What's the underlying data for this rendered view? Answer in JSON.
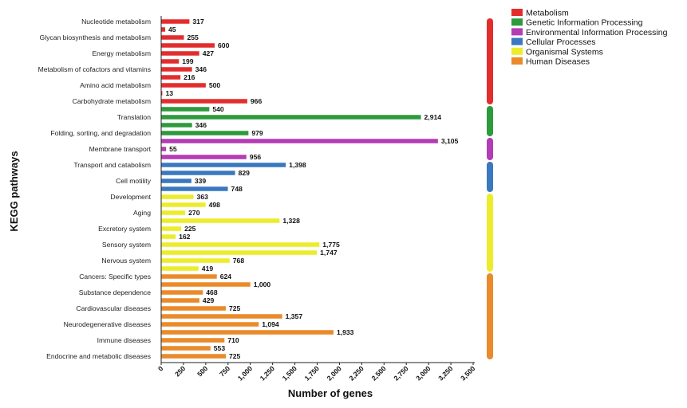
{
  "chart_data": {
    "type": "bar",
    "orientation": "horizontal",
    "xlabel": "Number of genes",
    "ylabel": "KEGG pathways",
    "xlim": [
      0,
      3500
    ],
    "xticks": [
      "0",
      "250",
      "500",
      "750",
      "1,000",
      "1,250",
      "1,500",
      "1,750",
      "2,000",
      "2,250",
      "2,500",
      "2,750",
      "3,000",
      "3,250",
      "3,500"
    ],
    "grid": false,
    "legend_position": "top-right",
    "groups": [
      {
        "name": "Metabolism",
        "color": "#e32d2d"
      },
      {
        "name": "Genetic Information Processing",
        "color": "#2d9a3c"
      },
      {
        "name": "Environmental Information Processing",
        "color": "#b43cb4"
      },
      {
        "name": "Cellular Processes",
        "color": "#3a78bf"
      },
      {
        "name": "Organismal Systems",
        "color": "#ecec2c"
      },
      {
        "name": "Human Diseases",
        "color": "#ea8a2a"
      }
    ],
    "bars": [
      {
        "label": "Nucleotide metabolism",
        "value": 317,
        "value_label": "317",
        "group": 0
      },
      {
        "label": "",
        "value": 45,
        "value_label": "45",
        "group": 0
      },
      {
        "label": "Glycan biosynthesis and metabolism",
        "value": 255,
        "value_label": "255",
        "group": 0
      },
      {
        "label": "",
        "value": 600,
        "value_label": "600",
        "group": 0
      },
      {
        "label": "Energy metabolism",
        "value": 427,
        "value_label": "427",
        "group": 0
      },
      {
        "label": "",
        "value": 199,
        "value_label": "199",
        "group": 0
      },
      {
        "label": "Metabolism of cofactors and vitamins",
        "value": 346,
        "value_label": "346",
        "group": 0
      },
      {
        "label": "",
        "value": 216,
        "value_label": "216",
        "group": 0
      },
      {
        "label": "Amino acid metabolism",
        "value": 500,
        "value_label": "500",
        "group": 0
      },
      {
        "label": "",
        "value": 13,
        "value_label": "13",
        "group": 0
      },
      {
        "label": "Carbohydrate metabolism",
        "value": 966,
        "value_label": "966",
        "group": 0
      },
      {
        "label": "",
        "value": 540,
        "value_label": "540",
        "group": 1
      },
      {
        "label": "Translation",
        "value": 2914,
        "value_label": "2,914",
        "group": 1
      },
      {
        "label": "",
        "value": 346,
        "value_label": "346",
        "group": 1
      },
      {
        "label": "Folding, sorting, and degradation",
        "value": 979,
        "value_label": "979",
        "group": 1
      },
      {
        "label": "",
        "value": 3105,
        "value_label": "3,105",
        "group": 2
      },
      {
        "label": "Membrane transport",
        "value": 55,
        "value_label": "55",
        "group": 2
      },
      {
        "label": "",
        "value": 956,
        "value_label": "956",
        "group": 2
      },
      {
        "label": "Transport and catabolism",
        "value": 1398,
        "value_label": "1,398",
        "group": 3
      },
      {
        "label": "",
        "value": 829,
        "value_label": "829",
        "group": 3
      },
      {
        "label": "Cell motility",
        "value": 339,
        "value_label": "339",
        "group": 3
      },
      {
        "label": "",
        "value": 748,
        "value_label": "748",
        "group": 3
      },
      {
        "label": "Development",
        "value": 363,
        "value_label": "363",
        "group": 4
      },
      {
        "label": "",
        "value": 498,
        "value_label": "498",
        "group": 4
      },
      {
        "label": "Aging",
        "value": 270,
        "value_label": "270",
        "group": 4
      },
      {
        "label": "",
        "value": 1328,
        "value_label": "1,328",
        "group": 4
      },
      {
        "label": "Excretory system",
        "value": 225,
        "value_label": "225",
        "group": 4
      },
      {
        "label": "",
        "value": 162,
        "value_label": "162",
        "group": 4
      },
      {
        "label": "Sensory system",
        "value": 1775,
        "value_label": "1,775",
        "group": 4
      },
      {
        "label": "",
        "value": 1747,
        "value_label": "1,747",
        "group": 4
      },
      {
        "label": "Nervous system",
        "value": 768,
        "value_label": "768",
        "group": 4
      },
      {
        "label": "",
        "value": 419,
        "value_label": "419",
        "group": 4
      },
      {
        "label": "Cancers: Specific types",
        "value": 624,
        "value_label": "624",
        "group": 5
      },
      {
        "label": "",
        "value": 1000,
        "value_label": "1,000",
        "group": 5
      },
      {
        "label": "Substance dependence",
        "value": 468,
        "value_label": "468",
        "group": 5
      },
      {
        "label": "",
        "value": 429,
        "value_label": "429",
        "group": 5
      },
      {
        "label": "Cardiovascular diseases",
        "value": 725,
        "value_label": "725",
        "group": 5
      },
      {
        "label": "",
        "value": 1357,
        "value_label": "1,357",
        "group": 5
      },
      {
        "label": "Neurodegenerative diseases",
        "value": 1094,
        "value_label": "1,094",
        "group": 5
      },
      {
        "label": "",
        "value": 1933,
        "value_label": "1,933",
        "group": 5
      },
      {
        "label": "Immune diseases",
        "value": 710,
        "value_label": "710",
        "group": 5
      },
      {
        "label": "",
        "value": 553,
        "value_label": "553",
        "group": 5
      },
      {
        "label": "Endocrine and metabolic diseases",
        "value": 725,
        "value_label": "725",
        "group": 5
      }
    ]
  }
}
